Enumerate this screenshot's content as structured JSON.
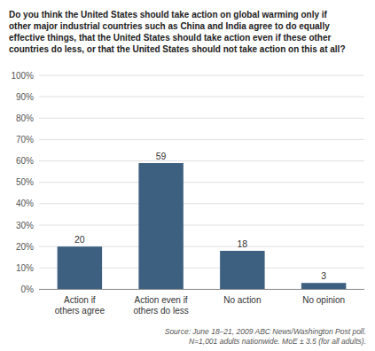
{
  "chart_data": {
    "type": "bar",
    "title": "Do you think the United States should take action on global warming only if\nother major industrial countries such as China and India agree to do equally\neffective things, that the United States should take action even if these other\ncountries do less, or that the United States should not take action on this at all?",
    "categories": [
      "Action if\nothers agree",
      "Action even if\nothers do less",
      "No action",
      "No opinion"
    ],
    "values": [
      20,
      59,
      18,
      3
    ],
    "color": "#3d6080",
    "ylim": [
      0,
      100
    ],
    "yticks": [
      {
        "value": 0,
        "label": "0%"
      },
      {
        "value": 10,
        "label": "10%"
      },
      {
        "value": 20,
        "label": "20%"
      },
      {
        "value": 30,
        "label": "30%"
      },
      {
        "value": 40,
        "label": "40%"
      },
      {
        "value": 50,
        "label": "50%"
      },
      {
        "value": 60,
        "label": "60%"
      },
      {
        "value": 70,
        "label": "70%"
      },
      {
        "value": 80,
        "label": "80%"
      },
      {
        "value": 90,
        "label": "90%"
      },
      {
        "value": 100,
        "label": "100%"
      }
    ],
    "grid": true,
    "data_labels": true,
    "source": "Source: June 18–21, 2009 ABC News/Washington Post poll.\nN=1,001 adults nationwide. MoE ± 3.5 (for all adults)."
  }
}
